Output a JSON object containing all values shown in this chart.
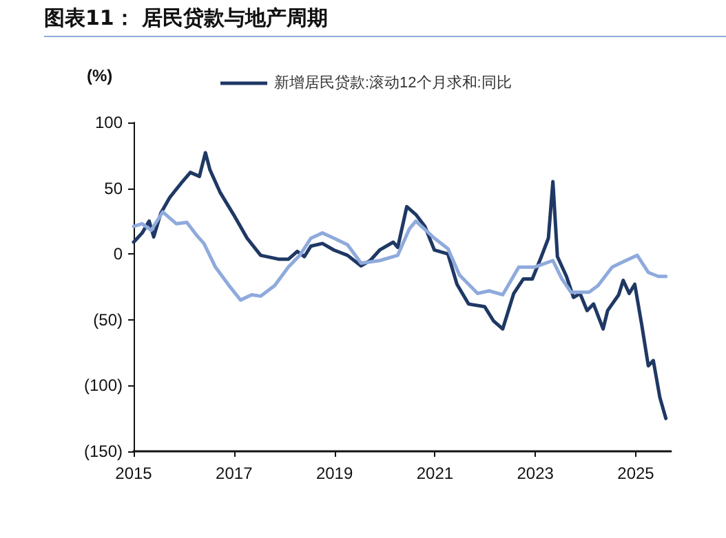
{
  "chart_data": {
    "type": "line",
    "title": "图表11：  居民贷款与地产周期",
    "ylabel": "(%)",
    "xlim": [
      2015,
      2025.7
    ],
    "xticks": [
      2015,
      2017,
      2019,
      2021,
      2023,
      2025
    ],
    "ylim": [
      -150,
      100
    ],
    "yticks": [
      100,
      50,
      0,
      {
        "value": -50,
        "label": "(50)"
      },
      {
        "value": -100,
        "label": "(100)"
      },
      {
        "value": -150,
        "label": "(150)"
      }
    ],
    "grid": false,
    "legend": "top",
    "marker": "none",
    "line_style": "solid",
    "series": [
      {
        "name": "新增居民贷款:滚动12个月求和:同比",
        "color": "#1f3864",
        "x": [
          2015.0,
          2015.17,
          2015.31,
          2015.4,
          2015.54,
          2015.72,
          2015.95,
          2016.13,
          2016.31,
          2016.43,
          2016.52,
          2016.72,
          2016.99,
          2017.26,
          2017.53,
          2017.9,
          2018.08,
          2018.26,
          2018.4,
          2018.53,
          2018.76,
          2018.99,
          2019.26,
          2019.53,
          2019.71,
          2019.9,
          2020.17,
          2020.26,
          2020.44,
          2020.62,
          2020.8,
          2020.99,
          2021.26,
          2021.44,
          2021.67,
          2021.99,
          2022.17,
          2022.35,
          2022.57,
          2022.76,
          2022.94,
          2023.12,
          2023.26,
          2023.35,
          2023.44,
          2023.62,
          2023.76,
          2023.89,
          2024.03,
          2024.16,
          2024.35,
          2024.44,
          2024.66,
          2024.75,
          2024.87,
          2024.98,
          2025.12,
          2025.25,
          2025.35,
          2025.48,
          2025.6
        ],
        "values": [
          9,
          16,
          25,
          13,
          31,
          43,
          54,
          62,
          59,
          77,
          64,
          47,
          30,
          12,
          -1,
          -4,
          -4,
          2,
          -2,
          6,
          8,
          3,
          -1,
          -9,
          -5,
          3,
          9,
          5,
          36,
          30,
          21,
          3,
          0,
          -23,
          -38,
          -40,
          -51,
          -57,
          -30,
          -19,
          -19,
          -2,
          12,
          55,
          -2,
          -17,
          -33,
          -30,
          -43,
          -38,
          -57,
          -43,
          -31,
          -20,
          -30,
          -23,
          -54,
          -85,
          -81,
          -109,
          -125
        ]
      },
      {
        "color": "#8faadc",
        "x": [
          2015.0,
          2015.17,
          2015.35,
          2015.58,
          2015.85,
          2016.06,
          2016.26,
          2016.4,
          2016.63,
          2016.9,
          2017.13,
          2017.35,
          2017.53,
          2017.81,
          2018.08,
          2018.31,
          2018.53,
          2018.76,
          2018.99,
          2019.26,
          2019.53,
          2019.9,
          2020.26,
          2020.49,
          2020.62,
          2020.99,
          2021.26,
          2021.49,
          2021.85,
          2022.08,
          2022.35,
          2022.67,
          2022.98,
          2023.35,
          2023.53,
          2023.71,
          2024.07,
          2024.25,
          2024.53,
          2024.8,
          2025.03,
          2025.25,
          2025.45,
          2025.6
        ],
        "values": [
          21,
          23,
          18,
          32,
          23,
          24,
          14,
          8,
          -10,
          -24,
          -35,
          -31,
          -32,
          -24,
          -10,
          -1,
          12,
          16,
          12,
          7,
          -7,
          -5,
          -1,
          19,
          25,
          12,
          4,
          -16,
          -30,
          -28,
          -31,
          -10,
          -10,
          -5,
          -19,
          -29,
          -29,
          -24,
          -10,
          -5,
          -1,
          -14,
          -17,
          -17
        ]
      }
    ]
  }
}
